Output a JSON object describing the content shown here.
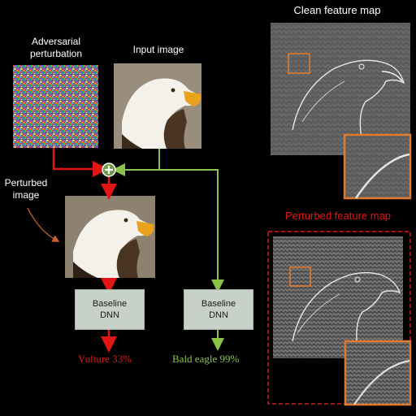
{
  "labels": {
    "adversarial_perturbation": "Adversarial\nperturbation",
    "input_image": "Input image",
    "perturbed_image": "Perturbed\nimage",
    "clean_feature_map": "Clean feature map",
    "perturbed_feature_map": "Perturbed feature map"
  },
  "models": {
    "left": "Baseline\nDNN",
    "right": "Baseline\nDNN"
  },
  "results": {
    "left": "Vulture 33%",
    "right": "Bald eagle 99%"
  },
  "colors": {
    "red_path": "#e01515",
    "green_path": "#8bc34a",
    "accent_orange": "#e07a2e",
    "dnn_box": "#c8d1c8"
  },
  "icons": [
    "plus-node-icon"
  ]
}
